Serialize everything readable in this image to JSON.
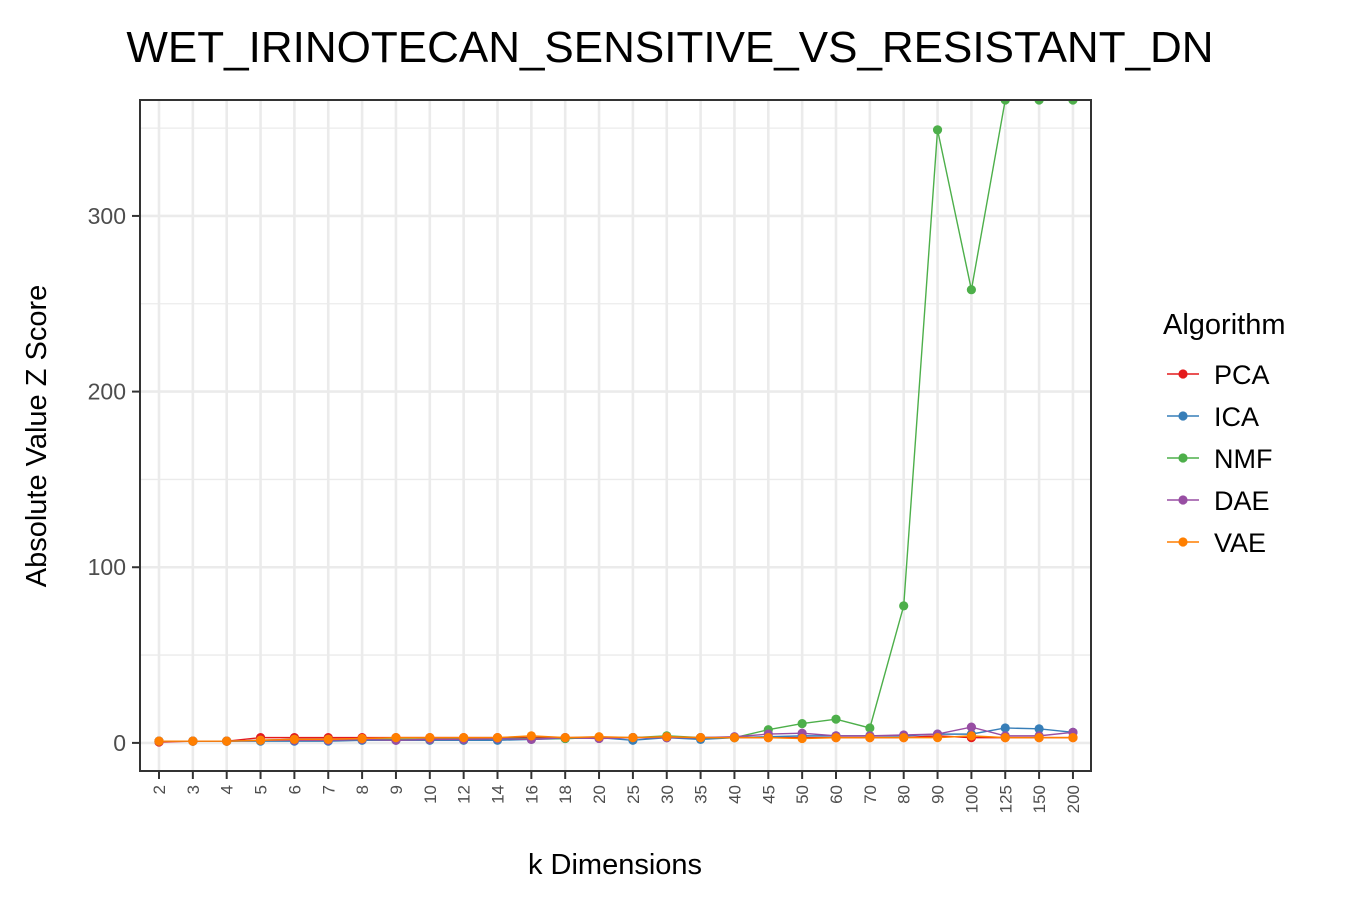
{
  "chart_data": {
    "type": "line",
    "title": "WET_IRINOTECAN_SENSITIVE_VS_RESISTANT_DN",
    "xlabel": "k Dimensions",
    "ylabel": "Absolute Value Z Score",
    "categories": [
      "2",
      "3",
      "4",
      "5",
      "6",
      "7",
      "8",
      "9",
      "10",
      "12",
      "14",
      "16",
      "18",
      "20",
      "25",
      "30",
      "35",
      "40",
      "45",
      "50",
      "60",
      "70",
      "80",
      "90",
      "100",
      "125",
      "150",
      "200"
    ],
    "ylim": [
      -16,
      366
    ],
    "yticks": [
      0,
      100,
      200,
      300
    ],
    "grid": true,
    "legend": {
      "title": "Algorithm",
      "position": "right"
    },
    "series": [
      {
        "name": "PCA",
        "color": "#E41A1C",
        "values": [
          0.5,
          1,
          1,
          3,
          3,
          3,
          3,
          3,
          3,
          3,
          3,
          3,
          3,
          3,
          3,
          3,
          3,
          3,
          3,
          3,
          3,
          3,
          3,
          4,
          3,
          3,
          3,
          3
        ]
      },
      {
        "name": "ICA",
        "color": "#377EB8",
        "values": [
          1,
          1,
          1,
          1,
          1,
          1,
          1.5,
          1.5,
          1.5,
          1.5,
          1.5,
          2,
          2.5,
          3,
          1.5,
          3,
          2,
          3,
          3.5,
          4,
          4,
          4,
          4,
          5,
          5,
          8.5,
          8,
          6
        ]
      },
      {
        "name": "NMF",
        "color": "#4DAF4A",
        "values": [
          1,
          1,
          1,
          1.5,
          2,
          2,
          2,
          2,
          2,
          2.5,
          2.5,
          2.5,
          2.5,
          3,
          3,
          4,
          3,
          3,
          7.5,
          11,
          13.5,
          8.5,
          78,
          349,
          258,
          366,
          366,
          366
        ]
      },
      {
        "name": "DAE",
        "color": "#984EA3",
        "values": [
          1,
          1,
          1,
          1.5,
          1.5,
          1.5,
          2,
          1.5,
          2,
          2,
          2.5,
          2,
          3,
          2.5,
          3,
          3,
          3,
          3.5,
          5,
          5.5,
          4,
          4,
          4.5,
          5,
          9,
          4,
          4,
          6
        ]
      },
      {
        "name": "VAE",
        "color": "#FF7F00",
        "values": [
          1,
          1,
          1,
          1.5,
          2,
          2,
          2.5,
          3,
          3,
          3,
          3,
          4,
          3,
          3.5,
          3,
          3.5,
          3,
          3,
          3,
          2.5,
          3,
          3,
          3,
          3,
          4,
          3,
          3,
          3
        ]
      }
    ]
  }
}
